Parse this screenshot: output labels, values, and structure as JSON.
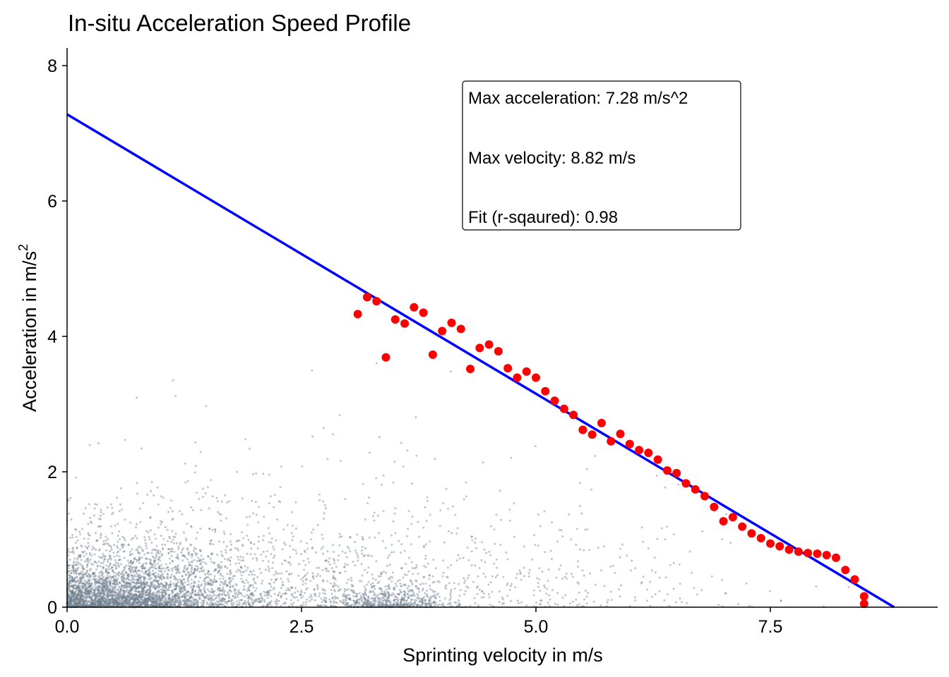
{
  "chart_data": {
    "type": "scatter",
    "title": "In-situ Acceleration Speed Profile",
    "xlabel": "Sprinting velocity in m/s",
    "ylabel_prefix": "Acceleration in m/s",
    "ylabel_superscript": "2",
    "xlim": [
      0,
      9.3
    ],
    "ylim": [
      0,
      8.25
    ],
    "x_ticks": [
      0,
      2.5,
      5,
      7.5
    ],
    "x_tick_labels": [
      "0.0",
      "2.5",
      "5.0",
      "7.5"
    ],
    "y_ticks": [
      0,
      2,
      4,
      6,
      8
    ],
    "y_tick_labels": [
      "0",
      "2",
      "4",
      "6",
      "8"
    ],
    "grid": false,
    "annotation": {
      "lines": [
        "Max acceleration: 7.28 m/s^2",
        "Max velocity: 8.82 m/s",
        "Fit (r-sqaured): 0.98"
      ]
    },
    "fit_line": {
      "color": "#0000ff",
      "intercept_acceleration": 7.28,
      "intercept_velocity": 8.82
    },
    "raw_points_color": "#708090",
    "series": [
      {
        "color": "#ff0000",
        "points": [
          [
            3.1,
            4.33
          ],
          [
            3.2,
            4.58
          ],
          [
            3.3,
            4.52
          ],
          [
            3.4,
            3.69
          ],
          [
            3.5,
            4.25
          ],
          [
            3.6,
            4.19
          ],
          [
            3.7,
            4.43
          ],
          [
            3.8,
            4.35
          ],
          [
            3.9,
            3.73
          ],
          [
            4.0,
            4.08
          ],
          [
            4.1,
            4.2
          ],
          [
            4.2,
            4.11
          ],
          [
            4.3,
            3.52
          ],
          [
            4.4,
            3.83
          ],
          [
            4.5,
            3.88
          ],
          [
            4.6,
            3.78
          ],
          [
            4.7,
            3.53
          ],
          [
            4.8,
            3.39
          ],
          [
            4.9,
            3.48
          ],
          [
            5.0,
            3.39
          ],
          [
            5.1,
            3.19
          ],
          [
            5.2,
            3.05
          ],
          [
            5.3,
            2.93
          ],
          [
            5.4,
            2.84
          ],
          [
            5.5,
            2.62
          ],
          [
            5.6,
            2.55
          ],
          [
            5.7,
            2.72
          ],
          [
            5.8,
            2.45
          ],
          [
            5.9,
            2.56
          ],
          [
            6.0,
            2.41
          ],
          [
            6.1,
            2.32
          ],
          [
            6.2,
            2.28
          ],
          [
            6.3,
            2.18
          ],
          [
            6.4,
            2.02
          ],
          [
            6.5,
            1.98
          ],
          [
            6.6,
            1.83
          ],
          [
            6.7,
            1.74
          ],
          [
            6.8,
            1.64
          ],
          [
            6.9,
            1.48
          ],
          [
            7.0,
            1.27
          ],
          [
            7.1,
            1.33
          ],
          [
            7.2,
            1.19
          ],
          [
            7.3,
            1.09
          ],
          [
            7.4,
            1.02
          ],
          [
            7.5,
            0.94
          ],
          [
            7.6,
            0.9
          ],
          [
            7.7,
            0.85
          ],
          [
            7.8,
            0.82
          ],
          [
            7.9,
            0.8
          ],
          [
            8.0,
            0.79
          ],
          [
            8.1,
            0.77
          ],
          [
            8.2,
            0.73
          ],
          [
            8.3,
            0.55
          ],
          [
            8.4,
            0.41
          ],
          [
            8.5,
            0.16
          ],
          [
            8.5,
            0.05
          ]
        ]
      }
    ]
  }
}
